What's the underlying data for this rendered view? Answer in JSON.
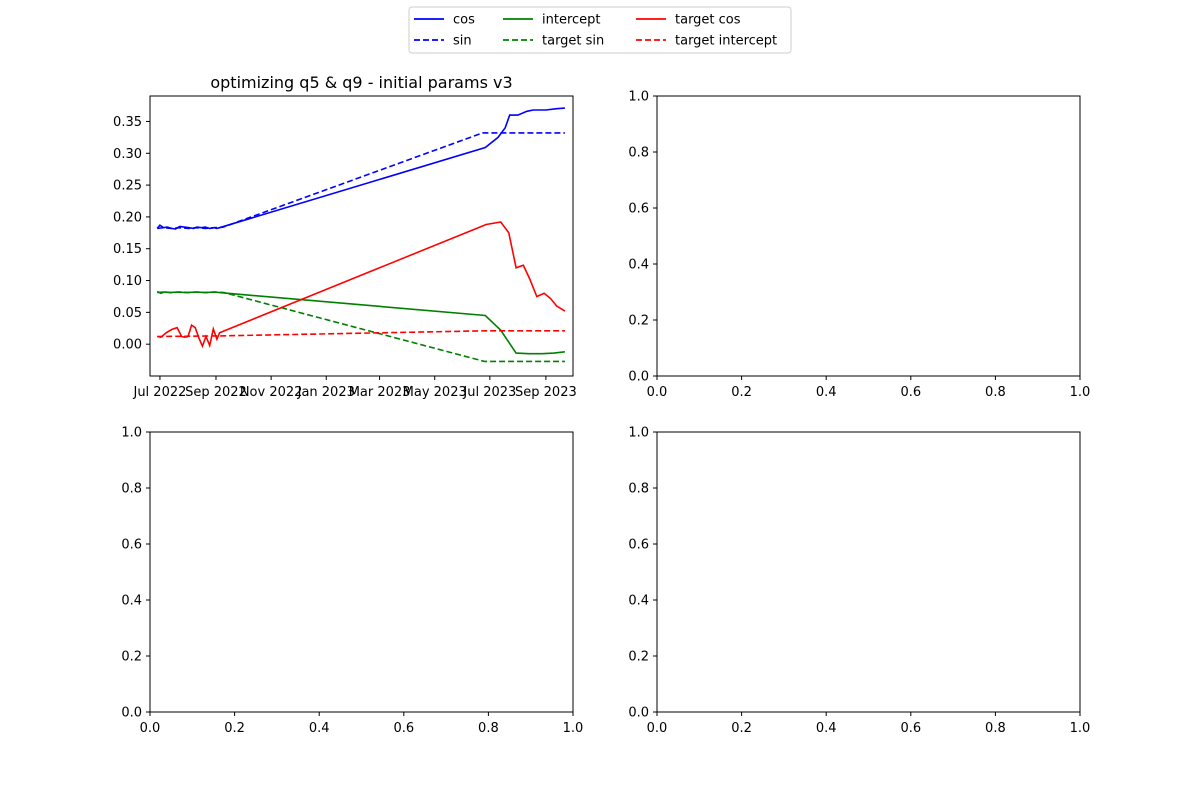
{
  "chart_data": [
    {
      "type": "line",
      "title": "optimizing q5 & q9 - initial params v3",
      "xlabel": "",
      "ylabel": "",
      "xlim": [
        "2022-06-20",
        "2023-10-01"
      ],
      "ylim": [
        -0.05,
        0.39
      ],
      "xticks": [
        "2022-07-01",
        "2022-09-01",
        "2022-11-01",
        "2023-01-01",
        "2023-03-01",
        "2023-05-01",
        "2023-07-01",
        "2023-09-01"
      ],
      "xtick_labels": [
        "Jul 2022",
        "Sep 2022",
        "Nov 2022",
        "Jan 2023",
        "Mar 2023",
        "May 2023",
        "Jul 2023",
        "Sep 2023"
      ],
      "yticks": [
        0.0,
        0.05,
        0.1,
        0.15,
        0.2,
        0.25,
        0.3,
        0.35
      ],
      "ytick_labels": [
        "0.00",
        "0.05",
        "0.10",
        "0.15",
        "0.20",
        "0.25",
        "0.30",
        "0.35"
      ],
      "legend_position": "top-center",
      "grid": false,
      "series": [
        {
          "name": "cos",
          "color": "#0000ff",
          "dash": "solid",
          "x": [
            "2022-06-28",
            "2022-07-01",
            "2022-07-05",
            "2022-07-09",
            "2022-07-14",
            "2022-07-18",
            "2022-07-23",
            "2022-07-28",
            "2022-08-02",
            "2022-08-07",
            "2022-08-11",
            "2022-08-16",
            "2022-08-20",
            "2022-08-25",
            "2022-08-30",
            "2022-09-02",
            "2022-09-05",
            "2023-06-26",
            "2023-07-10",
            "2023-07-18",
            "2023-07-23",
            "2023-08-01",
            "2023-08-11",
            "2023-08-18",
            "2023-09-01",
            "2023-09-13",
            "2023-09-22"
          ],
          "y": [
            0.182,
            0.187,
            0.183,
            0.184,
            0.182,
            0.181,
            0.185,
            0.184,
            0.183,
            0.182,
            0.184,
            0.183,
            0.184,
            0.182,
            0.183,
            0.182,
            0.183,
            0.309,
            0.325,
            0.34,
            0.36,
            0.36,
            0.366,
            0.368,
            0.368,
            0.37,
            0.371
          ]
        },
        {
          "name": "sin",
          "color": "#0000ff",
          "dash": "dashed",
          "x": [
            "2022-06-28",
            "2022-07-05",
            "2022-07-14",
            "2022-07-23",
            "2022-08-02",
            "2022-08-11",
            "2022-08-20",
            "2022-08-30",
            "2022-09-09",
            "2023-06-23",
            "2023-09-22"
          ],
          "y": [
            0.182,
            0.183,
            0.182,
            0.183,
            0.182,
            0.183,
            0.182,
            0.183,
            0.184,
            0.332,
            0.332
          ]
        },
        {
          "name": "intercept",
          "color": "#008000",
          "dash": "solid",
          "x": [
            "2022-06-28",
            "2022-07-02",
            "2022-07-06",
            "2022-07-12",
            "2022-07-20",
            "2022-07-30",
            "2022-08-10",
            "2022-08-20",
            "2022-08-31",
            "2022-09-05",
            "2023-06-26",
            "2023-07-13",
            "2023-07-30",
            "2023-08-13",
            "2023-08-28",
            "2023-09-10",
            "2023-09-22"
          ],
          "y": [
            0.083,
            0.08,
            0.082,
            0.081,
            0.082,
            0.081,
            0.082,
            0.081,
            0.082,
            0.081,
            0.045,
            0.022,
            -0.014,
            -0.015,
            -0.015,
            -0.014,
            -0.012
          ]
        },
        {
          "name": "target sin",
          "color": "#008000",
          "dash": "dashed",
          "x": [
            "2022-06-28",
            "2022-07-05",
            "2022-07-14",
            "2022-07-23",
            "2022-08-02",
            "2022-08-11",
            "2022-08-20",
            "2022-08-30",
            "2022-09-10",
            "2023-06-25",
            "2023-09-22"
          ],
          "y": [
            0.081,
            0.082,
            0.081,
            0.082,
            0.081,
            0.082,
            0.081,
            0.082,
            0.081,
            -0.027,
            -0.027
          ]
        },
        {
          "name": "target cos",
          "color": "#ff0000",
          "dash": "solid",
          "x": [
            "2022-06-28",
            "2022-07-02",
            "2022-07-08",
            "2022-07-14",
            "2022-07-20",
            "2022-07-25",
            "2022-07-28",
            "2022-08-01",
            "2022-08-05",
            "2022-08-09",
            "2022-08-13",
            "2022-08-17",
            "2022-08-21",
            "2022-08-25",
            "2022-08-29",
            "2022-09-02",
            "2022-09-05",
            "2023-06-27",
            "2023-07-13",
            "2023-07-22",
            "2023-07-30",
            "2023-08-07",
            "2023-08-14",
            "2023-08-22",
            "2023-08-30",
            "2023-09-06",
            "2023-09-13",
            "2023-09-22"
          ],
          "y": [
            0.012,
            0.011,
            0.018,
            0.023,
            0.026,
            0.012,
            0.011,
            0.012,
            0.03,
            0.026,
            0.01,
            -0.003,
            0.012,
            -0.002,
            0.024,
            0.008,
            0.018,
            0.188,
            0.192,
            0.175,
            0.12,
            0.124,
            0.103,
            0.075,
            0.08,
            0.072,
            0.06,
            0.052
          ]
        },
        {
          "name": "target intercept",
          "color": "#ff0000",
          "dash": "dashed",
          "x": [
            "2022-06-28",
            "2022-09-05",
            "2023-06-26",
            "2023-09-22"
          ],
          "y": [
            0.012,
            0.013,
            0.021,
            0.021
          ]
        }
      ]
    },
    {
      "type": "line",
      "title": "",
      "xlabel": "",
      "ylabel": "",
      "xlim": [
        0,
        1
      ],
      "ylim": [
        0,
        1
      ],
      "xtick_labels": [
        "0.0",
        "0.2",
        "0.4",
        "0.6",
        "0.8",
        "1.0"
      ],
      "ytick_labels": [
        "0.0",
        "0.2",
        "0.4",
        "0.6",
        "0.8",
        "1.0"
      ],
      "series": []
    },
    {
      "type": "line",
      "title": "",
      "xlabel": "",
      "ylabel": "",
      "xlim": [
        0,
        1
      ],
      "ylim": [
        0,
        1
      ],
      "xtick_labels": [
        "0.0",
        "0.2",
        "0.4",
        "0.6",
        "0.8",
        "1.0"
      ],
      "ytick_labels": [
        "0.0",
        "0.2",
        "0.4",
        "0.6",
        "0.8",
        "1.0"
      ],
      "series": []
    },
    {
      "type": "line",
      "title": "",
      "xlabel": "",
      "ylabel": "",
      "xlim": [
        0,
        1
      ],
      "ylim": [
        0,
        1
      ],
      "xtick_labels": [
        "0.0",
        "0.2",
        "0.4",
        "0.6",
        "0.8",
        "1.0"
      ],
      "ytick_labels": [
        "0.0",
        "0.2",
        "0.4",
        "0.6",
        "0.8",
        "1.0"
      ],
      "series": []
    }
  ]
}
